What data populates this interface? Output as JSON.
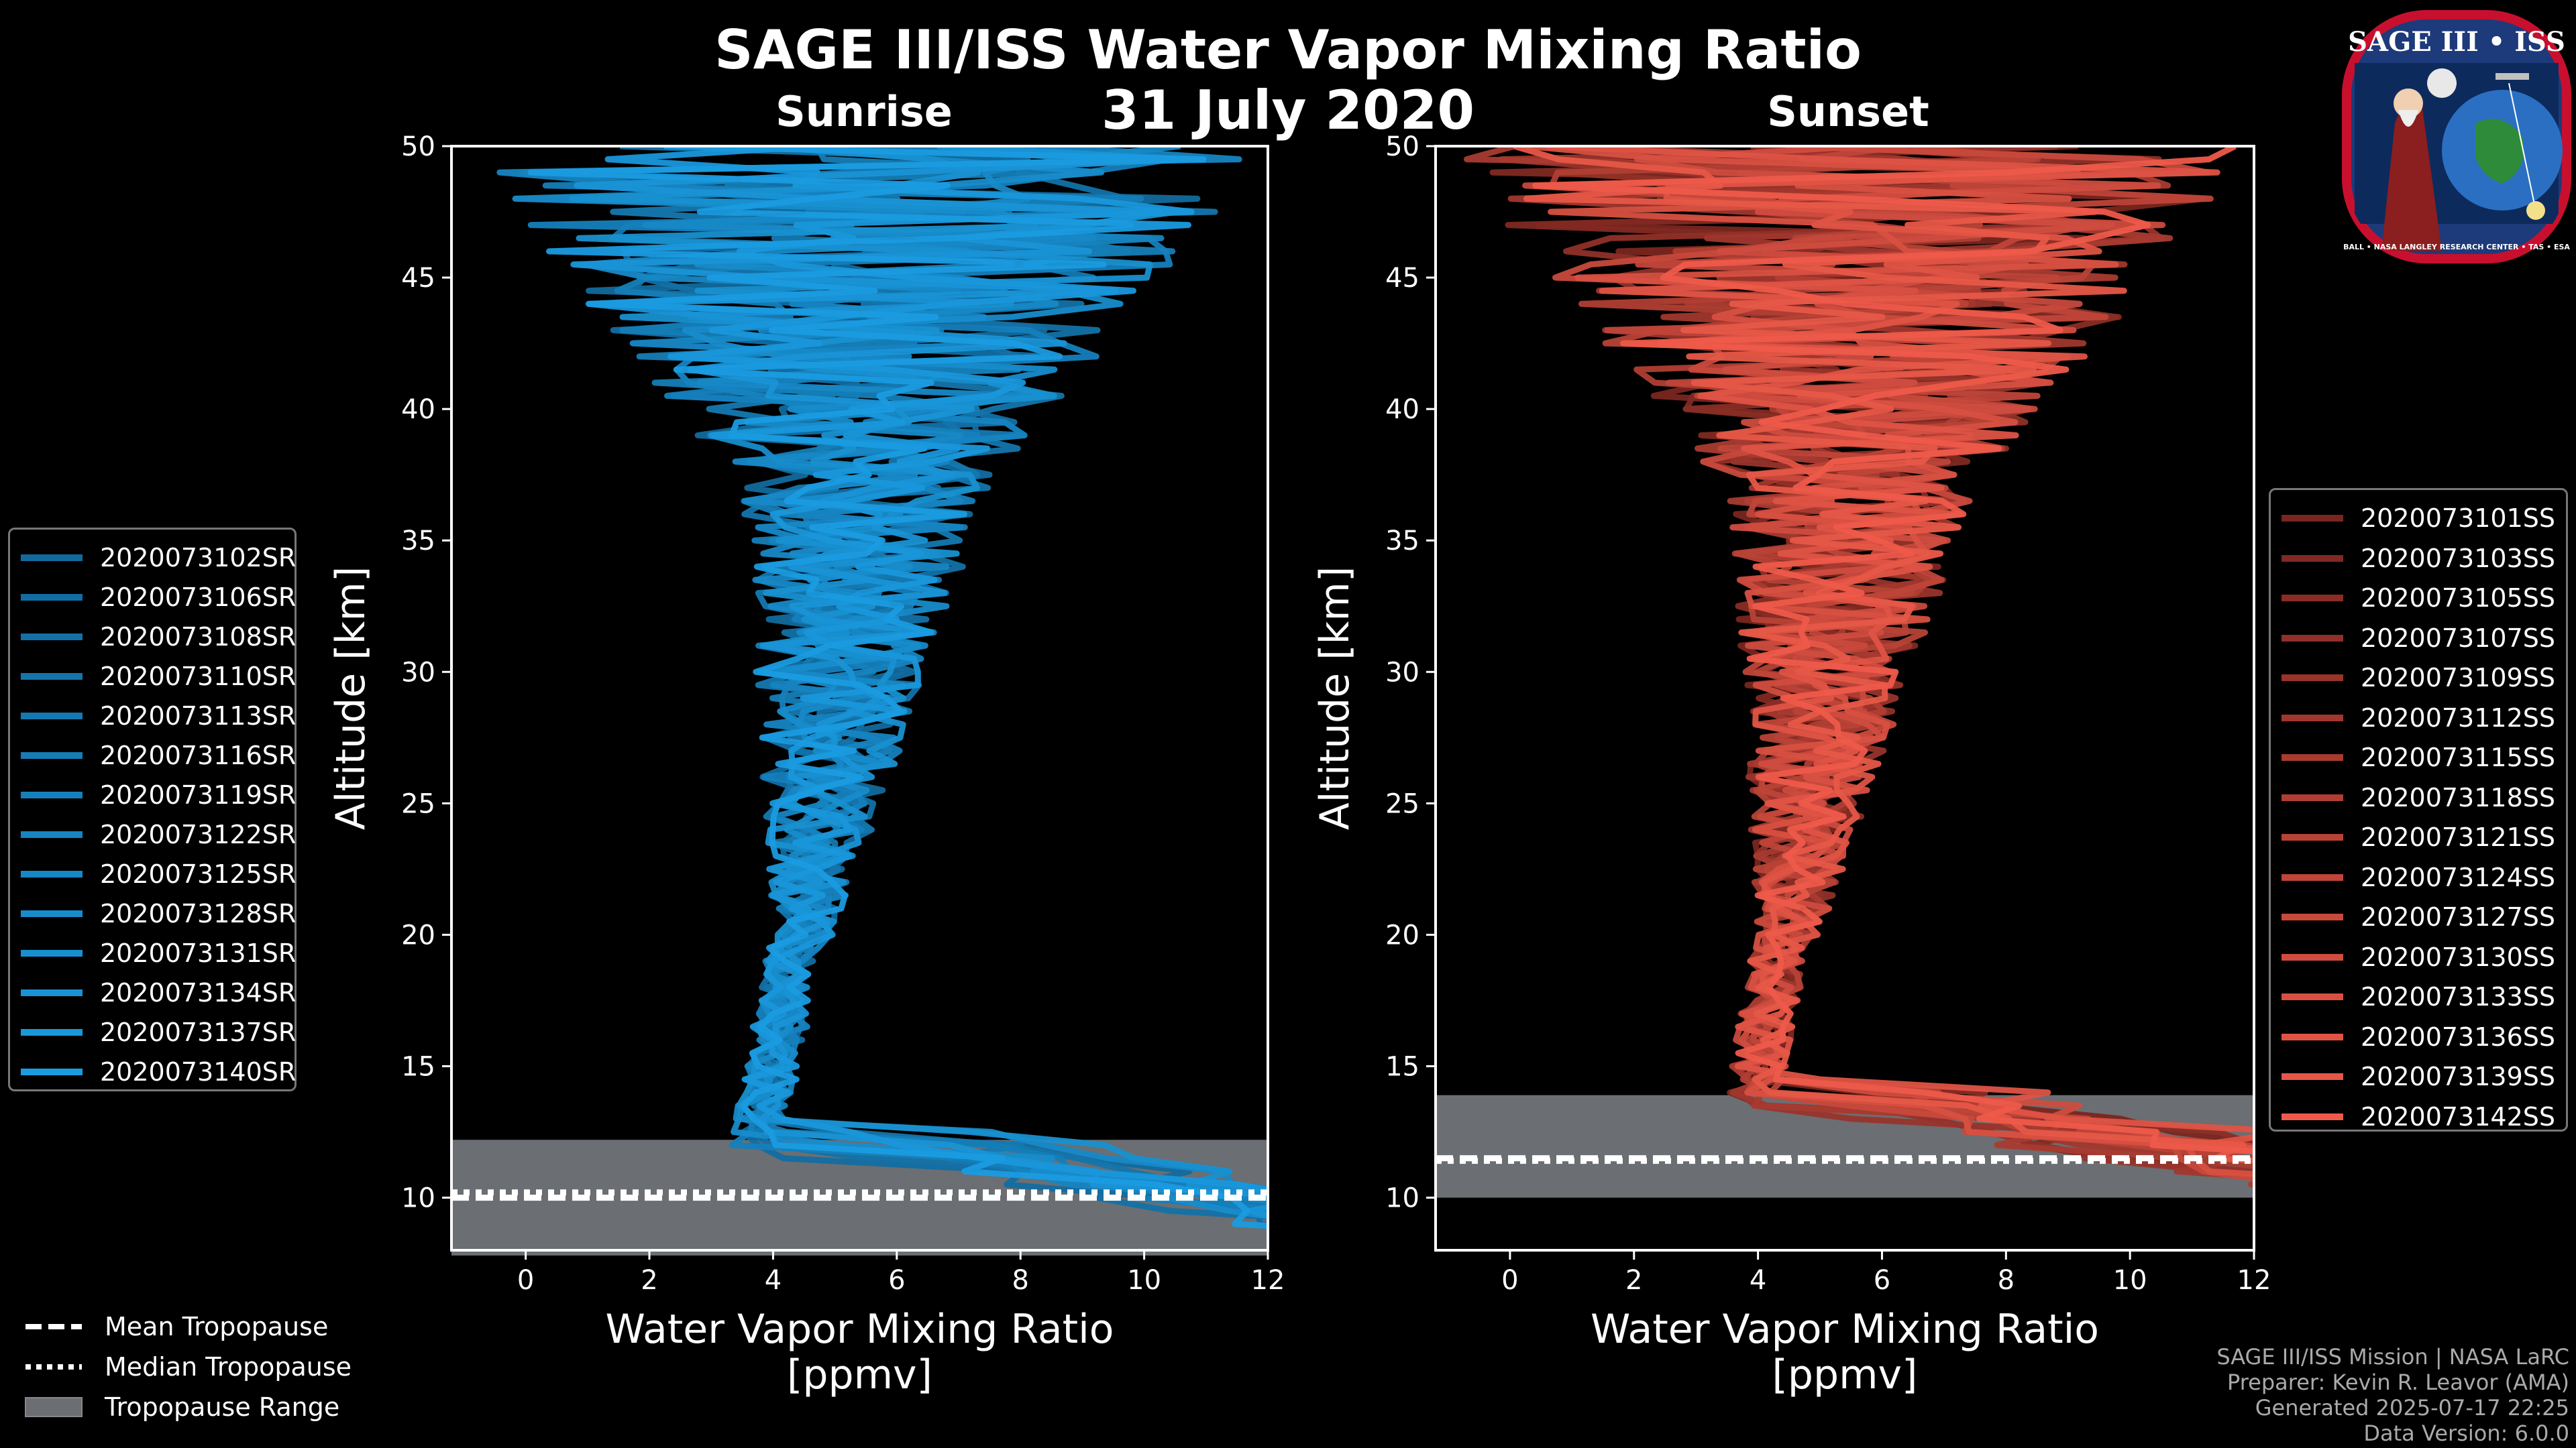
{
  "title": "SAGE III/ISS Water Vapor Mixing Ratio",
  "date": "31 July 2020",
  "colors": {
    "sunrise": "#1a9be0",
    "sunrise_dark": "#0d4f78",
    "sunset": "#ee5a4a",
    "sunset_dark": "#3a0a08",
    "tropopause_band": "#6b6e72",
    "background": "#000000"
  },
  "chart_data": [
    {
      "type": "line",
      "panel": "Sunrise",
      "title": "Sunrise",
      "xlabel": "Water Vapor Mixing Ratio\n[ppmv]",
      "ylabel": "Altitude [km]",
      "xlim": [
        -1.2,
        12
      ],
      "ylim": [
        8,
        50
      ],
      "xticks": [
        0,
        2,
        4,
        6,
        8,
        10,
        12
      ],
      "yticks": [
        10,
        15,
        20,
        25,
        30,
        35,
        40,
        45,
        50
      ],
      "tropopause": {
        "min": 7.8,
        "max": 12.2,
        "mean": 10.0,
        "median": 10.2
      },
      "series": [
        {
          "name": "2020073102SR"
        },
        {
          "name": "2020073106SR"
        },
        {
          "name": "2020073108SR"
        },
        {
          "name": "2020073110SR"
        },
        {
          "name": "2020073113SR"
        },
        {
          "name": "2020073116SR"
        },
        {
          "name": "2020073119SR"
        },
        {
          "name": "2020073122SR"
        },
        {
          "name": "2020073125SR"
        },
        {
          "name": "2020073128SR"
        },
        {
          "name": "2020073131SR"
        },
        {
          "name": "2020073134SR"
        },
        {
          "name": "2020073137SR"
        },
        {
          "name": "2020073140SR"
        }
      ]
    },
    {
      "type": "line",
      "panel": "Sunset",
      "title": "Sunset",
      "xlabel": "Water Vapor Mixing Ratio\n[ppmv]",
      "ylabel": "Altitude [km]",
      "xlim": [
        -1.2,
        12
      ],
      "ylim": [
        8,
        50
      ],
      "xticks": [
        0,
        2,
        4,
        6,
        8,
        10,
        12
      ],
      "yticks": [
        10,
        15,
        20,
        25,
        30,
        35,
        40,
        45,
        50
      ],
      "tropopause": {
        "min": 10.0,
        "max": 13.9,
        "mean": 11.5,
        "median": 11.4
      },
      "series": [
        {
          "name": "2020073101SS"
        },
        {
          "name": "2020073103SS"
        },
        {
          "name": "2020073105SS"
        },
        {
          "name": "2020073107SS"
        },
        {
          "name": "2020073109SS"
        },
        {
          "name": "2020073112SS"
        },
        {
          "name": "2020073115SS"
        },
        {
          "name": "2020073118SS"
        },
        {
          "name": "2020073121SS"
        },
        {
          "name": "2020073124SS"
        },
        {
          "name": "2020073127SS"
        },
        {
          "name": "2020073130SS"
        },
        {
          "name": "2020073133SS"
        },
        {
          "name": "2020073136SS"
        },
        {
          "name": "2020073139SS"
        },
        {
          "name": "2020073142SS"
        }
      ]
    }
  ],
  "tropopause_legend": {
    "mean": "Mean Tropopause",
    "median": "Median Tropopause",
    "range": "Tropopause Range"
  },
  "logo": {
    "top_text": "SAGE III • ISS",
    "ring_text": "BALL • NASA LANGLEY RESEARCH CENTER • TAS • ESA"
  },
  "credits": {
    "line1": "SAGE III/ISS Mission | NASA LaRC",
    "line2": "Preparer: Kevin R. Leavor (AMA)",
    "line3": "Generated 2025-07-17 22:25",
    "line4": "Data Version: 6.0.0"
  }
}
